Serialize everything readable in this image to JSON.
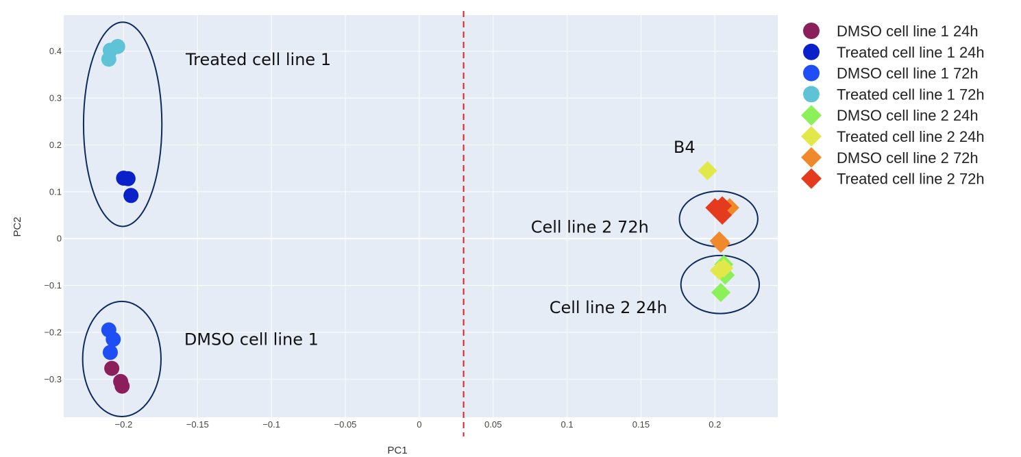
{
  "chart_data": {
    "type": "scatter",
    "xlabel": "PC1",
    "ylabel": "PC2",
    "xlim": [
      -0.2405,
      0.2425
    ],
    "ylim": [
      -0.3814,
      0.4771
    ],
    "x_ticks": [
      {
        "value": -0.2,
        "label": "−0.2"
      },
      {
        "value": -0.15,
        "label": "−0.15"
      },
      {
        "value": -0.1,
        "label": "−0.1"
      },
      {
        "value": -0.05,
        "label": "−0.05"
      },
      {
        "value": 0,
        "label": "0"
      },
      {
        "value": 0.05,
        "label": "0.05"
      },
      {
        "value": 0.1,
        "label": "0.1"
      },
      {
        "value": 0.15,
        "label": "0.15"
      },
      {
        "value": 0.2,
        "label": "0.2"
      }
    ],
    "y_ticks": [
      {
        "value": -0.3,
        "label": "−0.3"
      },
      {
        "value": -0.2,
        "label": "−0.2"
      },
      {
        "value": -0.1,
        "label": "−0.1"
      },
      {
        "value": 0,
        "label": "0"
      },
      {
        "value": 0.1,
        "label": "0.1"
      },
      {
        "value": 0.2,
        "label": "0.2"
      },
      {
        "value": 0.3,
        "label": "0.3"
      },
      {
        "value": 0.4,
        "label": "0.4"
      }
    ],
    "grid": true,
    "legend_position": "right",
    "vertical_line": {
      "x": 0.03,
      "style": "dashed",
      "color": "#e02020"
    },
    "series": [
      {
        "name": "DMSO cell line 1 24h",
        "marker": "circle",
        "color": "#8b1f5c",
        "points": [
          [
            -0.208,
            -0.277
          ],
          [
            -0.202,
            -0.305
          ],
          [
            -0.201,
            -0.315
          ]
        ]
      },
      {
        "name": "Treated cell line 1 24h",
        "marker": "circle",
        "color": "#0a20c8",
        "points": [
          [
            -0.2,
            0.129
          ],
          [
            -0.197,
            0.128
          ],
          [
            -0.195,
            0.092
          ]
        ]
      },
      {
        "name": "DMSO cell line 1 72h",
        "marker": "circle",
        "color": "#1f4ef5",
        "points": [
          [
            -0.21,
            -0.195
          ],
          [
            -0.207,
            -0.215
          ],
          [
            -0.209,
            -0.243
          ]
        ]
      },
      {
        "name": "Treated cell line 1 72h",
        "marker": "circle",
        "color": "#5ec3d6",
        "points": [
          [
            -0.209,
            0.402
          ],
          [
            -0.204,
            0.41
          ],
          [
            -0.21,
            0.383
          ]
        ]
      },
      {
        "name": "DMSO cell line 2 24h",
        "marker": "diamond",
        "color": "#8cf158",
        "points": [
          [
            0.206,
            -0.055
          ],
          [
            0.207,
            -0.078
          ],
          [
            0.204,
            -0.115
          ]
        ]
      },
      {
        "name": "Treated cell line 2 24h",
        "marker": "diamond",
        "color": "#e2e74a",
        "points": [
          [
            0.195,
            0.145
          ],
          [
            0.203,
            -0.068
          ],
          [
            0.206,
            -0.063
          ]
        ]
      },
      {
        "name": "DMSO cell line 2 72h",
        "marker": "diamond",
        "color": "#f0892c",
        "points": [
          [
            0.21,
            0.066
          ],
          [
            0.203,
            -0.005
          ],
          [
            0.204,
            -0.01
          ]
        ]
      },
      {
        "name": "Treated cell line 2 72h",
        "marker": "diamond",
        "color": "#e43a1e",
        "points": [
          [
            0.2,
            0.066
          ],
          [
            0.205,
            0.07
          ],
          [
            0.205,
            0.05
          ],
          [
            0.202,
            0.062
          ]
        ]
      }
    ],
    "ellipses": [
      {
        "cx": -0.2006,
        "cy": 0.244,
        "rx": 0.0265,
        "ry": 0.218
      },
      {
        "cx": -0.2012,
        "cy": -0.257,
        "rx": 0.0265,
        "ry": 0.123
      },
      {
        "cx": 0.2025,
        "cy": 0.042,
        "rx": 0.0265,
        "ry": 0.059
      },
      {
        "cx": 0.2035,
        "cy": -0.098,
        "rx": 0.0265,
        "ry": 0.062
      }
    ],
    "annotations": [
      {
        "text": "Treated cell line 1",
        "x": -0.158,
        "y": 0.37
      },
      {
        "text": "DMSO cell line 1",
        "x": -0.159,
        "y": -0.227
      },
      {
        "text": "B4",
        "x": 0.172,
        "y": 0.183
      },
      {
        "text": "Cell line 2 72h",
        "x": 0.0755,
        "y": 0.013
      },
      {
        "text": "Cell line 2 24h",
        "x": 0.088,
        "y": -0.159
      }
    ]
  }
}
